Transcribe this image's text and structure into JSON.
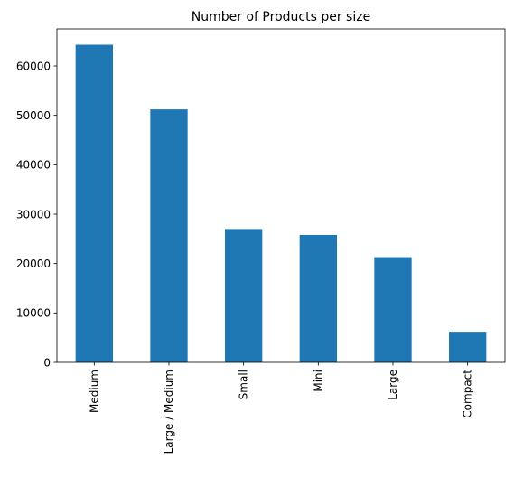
{
  "chart_data": {
    "type": "bar",
    "title": "Number of Products per size",
    "xlabel": "",
    "ylabel": "",
    "categories": [
      "Medium",
      "Large / Medium",
      "Small",
      "Mini",
      "Large",
      "Compact"
    ],
    "values": [
      64300,
      51200,
      27000,
      25800,
      21300,
      6200
    ],
    "ylim": [
      0,
      67500
    ],
    "yticks": [
      0,
      10000,
      20000,
      30000,
      40000,
      50000,
      60000
    ],
    "ytick_labels": [
      "0",
      "10000",
      "20000",
      "30000",
      "40000",
      "50000",
      "60000"
    ],
    "grid": false,
    "bar_color": "#1f77b4"
  }
}
